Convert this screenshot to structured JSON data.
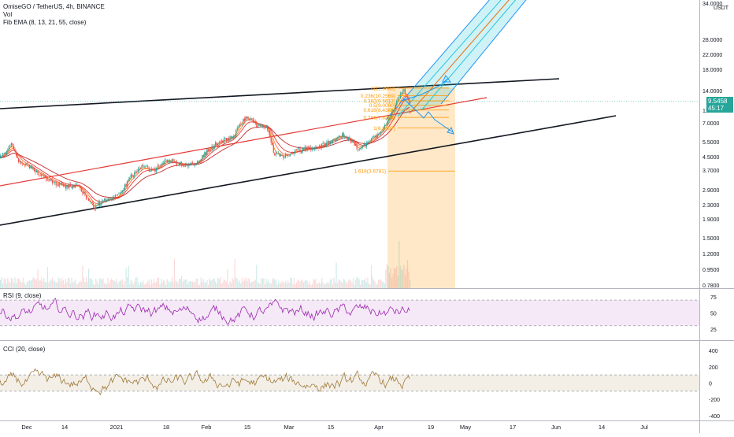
{
  "header": {
    "title": "OmiseGO / TetherUS, 4h, BINANCE",
    "vol_label": "Vol",
    "fib_ema_label": "Fib EMA (8, 13, 21, 55, close)"
  },
  "price_axis": {
    "unit_label": "USDT",
    "ticks": [
      "34.0000",
      "28.0000",
      "22.0000",
      "18.0000",
      "14.0000",
      "11.0000",
      "9.5458",
      "7.0000",
      "5.5000",
      "4.5000",
      "3.7000",
      "2.9000",
      "2.3000",
      "1.9000",
      "1.5000",
      "1.2000",
      "0.9500",
      "0.7800"
    ],
    "current_price": "9.5458",
    "countdown": "45:17"
  },
  "time_axis": {
    "labels": [
      "Dec",
      "14",
      "2021",
      "18",
      "Feb",
      "15",
      "Mar",
      "15",
      "Apr",
      "19",
      "May",
      "17",
      "Jun",
      "14",
      "Jul"
    ]
  },
  "fib_levels": [
    {
      "label": "0(11.3803)",
      "value": 11.3803
    },
    {
      "label": "0.236(10.2569)",
      "value": 10.2569
    },
    {
      "label": "0.382(9.5613)",
      "value": 9.5613
    },
    {
      "label": "0.5(9.0000)",
      "value": 9.0
    },
    {
      "label": "0.618(8.4381)",
      "value": 8.4381
    },
    {
      "label": "0.786(7.6384)",
      "value": 7.6384
    },
    {
      "label": "1(6.6197)",
      "value": 6.6197
    },
    {
      "label": "1.618(3.6781)",
      "value": 3.6781
    }
  ],
  "rsi": {
    "title": "RSI (9, close)",
    "ticks": [
      "75",
      "50",
      "25"
    ],
    "upper_band": 70,
    "lower_band": 30
  },
  "cci": {
    "title": "CCI (20, close)",
    "ticks": [
      "400",
      "200",
      "0",
      "-200",
      "-400"
    ],
    "upper_band": 100,
    "lower_band": -100
  },
  "colors": {
    "up": "#26a69a",
    "down": "#ef5350",
    "fib": "#ff9800",
    "rsi_line": "#9c27b0",
    "cci_line": "#a07a3a",
    "channel_blue": "#2196f3",
    "trendline": "#131722",
    "red_trend": "#e53935"
  },
  "chart_data": {
    "type": "candlestick",
    "title": "OmiseGO / TetherUS, 4h, BINANCE",
    "ylabel": "USDT",
    "y_scale": "log",
    "ylim": [
      0.75,
      36
    ],
    "x_labels": [
      "Dec",
      "14",
      "2021",
      "18",
      "Feb",
      "15",
      "Mar",
      "15",
      "Apr",
      "19",
      "May",
      "17",
      "Jun",
      "14",
      "Jul"
    ],
    "price_path_approx": [
      {
        "x": "Dec",
        "close": 4.3
      },
      {
        "x": "14",
        "close": 3.1
      },
      {
        "x": "2021",
        "close": 2.8
      },
      {
        "x": "18",
        "close": 4.2
      },
      {
        "x": "Feb",
        "close": 5.2
      },
      {
        "x": "15",
        "close": 7.6
      },
      {
        "x": "Mar",
        "close": 4.5
      },
      {
        "x": "15",
        "close": 5.6
      },
      {
        "x": "Apr",
        "close": 9.5
      }
    ],
    "last_price": 9.5458,
    "series": [
      {
        "name": "Vol"
      },
      {
        "name": "Fib EMA (8, 13, 21, 55, close)"
      },
      {
        "name": "RSI (9, close)"
      },
      {
        "name": "CCI (20, close)"
      }
    ]
  }
}
